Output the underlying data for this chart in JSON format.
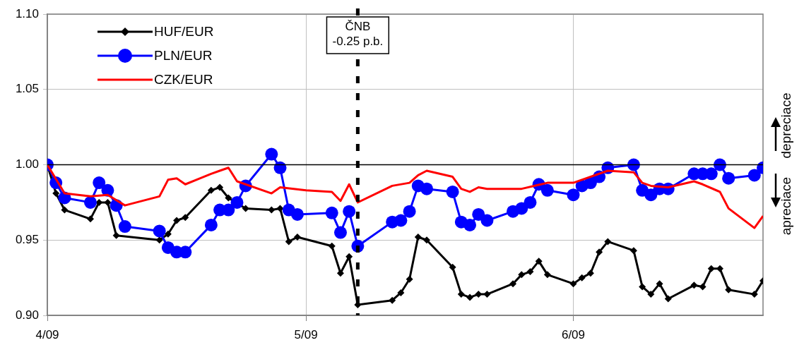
{
  "chart_data": {
    "type": "line",
    "xlim": [
      "2009-04-01",
      "2009-06-23"
    ],
    "xticks": [
      {
        "value": "2009-04-01",
        "label": "4/09"
      },
      {
        "value": "2009-05-01",
        "label": "5/09"
      },
      {
        "value": "2009-06-01",
        "label": "6/09"
      }
    ],
    "ylim": [
      0.9,
      1.1
    ],
    "yticks": [
      {
        "value": 0.9,
        "label": "0.90"
      },
      {
        "value": 0.95,
        "label": "0.95"
      },
      {
        "value": 1.0,
        "label": "1.00"
      },
      {
        "value": 1.05,
        "label": "1.05"
      },
      {
        "value": 1.1,
        "label": "1.10"
      }
    ],
    "grid": true,
    "legend": "top left",
    "series": [
      {
        "name": "HUF/EUR",
        "color": "#000000",
        "marker": "diamond",
        "x": [
          "2009-04-01",
          "2009-04-02",
          "2009-04-03",
          "2009-04-06",
          "2009-04-07",
          "2009-04-08",
          "2009-04-09",
          "2009-04-14",
          "2009-04-15",
          "2009-04-16",
          "2009-04-17",
          "2009-04-20",
          "2009-04-21",
          "2009-04-22",
          "2009-04-24",
          "2009-04-27",
          "2009-04-28",
          "2009-04-29",
          "2009-04-30",
          "2009-05-04",
          "2009-05-05",
          "2009-05-06",
          "2009-05-07",
          "2009-05-11",
          "2009-05-12",
          "2009-05-13",
          "2009-05-14",
          "2009-05-15",
          "2009-05-18",
          "2009-05-19",
          "2009-05-20",
          "2009-05-21",
          "2009-05-22",
          "2009-05-25",
          "2009-05-26",
          "2009-05-27",
          "2009-05-28",
          "2009-05-29",
          "2009-06-01",
          "2009-06-02",
          "2009-06-03",
          "2009-06-04",
          "2009-06-05",
          "2009-06-08",
          "2009-06-09",
          "2009-06-10",
          "2009-06-11",
          "2009-06-12",
          "2009-06-15",
          "2009-06-16",
          "2009-06-17",
          "2009-06-18",
          "2009-06-19",
          "2009-06-22",
          "2009-06-23"
        ],
        "values": [
          1.0,
          0.981,
          0.97,
          0.964,
          0.975,
          0.975,
          0.953,
          0.95,
          0.954,
          0.963,
          0.965,
          0.983,
          0.985,
          0.978,
          0.971,
          0.97,
          0.971,
          0.949,
          0.952,
          0.946,
          0.928,
          0.939,
          0.907,
          0.91,
          0.915,
          0.924,
          0.952,
          0.95,
          0.932,
          0.914,
          0.912,
          0.914,
          0.914,
          0.921,
          0.927,
          0.929,
          0.936,
          0.927,
          0.921,
          0.925,
          0.928,
          0.942,
          0.949,
          0.943,
          0.919,
          0.914,
          0.921,
          0.911,
          0.92,
          0.919,
          0.931,
          0.931,
          0.917,
          0.914,
          0.923
        ]
      },
      {
        "name": "PLN/EUR",
        "color": "#0000ff",
        "marker": "circle",
        "x": [
          "2009-04-01",
          "2009-04-02",
          "2009-04-03",
          "2009-04-06",
          "2009-04-07",
          "2009-04-08",
          "2009-04-09",
          "2009-04-10",
          "2009-04-14",
          "2009-04-15",
          "2009-04-16",
          "2009-04-17",
          "2009-04-20",
          "2009-04-21",
          "2009-04-22",
          "2009-04-23",
          "2009-04-24",
          "2009-04-27",
          "2009-04-28",
          "2009-04-29",
          "2009-04-30",
          "2009-05-04",
          "2009-05-05",
          "2009-05-06",
          "2009-05-07",
          "2009-05-11",
          "2009-05-12",
          "2009-05-13",
          "2009-05-14",
          "2009-05-15",
          "2009-05-18",
          "2009-05-19",
          "2009-05-20",
          "2009-05-21",
          "2009-05-22",
          "2009-05-25",
          "2009-05-26",
          "2009-05-27",
          "2009-05-28",
          "2009-05-29",
          "2009-06-01",
          "2009-06-02",
          "2009-06-03",
          "2009-06-04",
          "2009-06-05",
          "2009-06-08",
          "2009-06-09",
          "2009-06-10",
          "2009-06-11",
          "2009-06-12",
          "2009-06-15",
          "2009-06-16",
          "2009-06-17",
          "2009-06-18",
          "2009-06-19",
          "2009-06-22",
          "2009-06-23"
        ],
        "values": [
          1.0,
          0.988,
          0.978,
          0.975,
          0.988,
          0.983,
          0.973,
          0.959,
          0.956,
          0.945,
          0.942,
          0.942,
          0.96,
          0.97,
          0.97,
          0.975,
          0.986,
          1.007,
          0.998,
          0.97,
          0.967,
          0.968,
          0.955,
          0.969,
          0.946,
          0.962,
          0.963,
          0.969,
          0.986,
          0.984,
          0.982,
          0.962,
          0.96,
          0.967,
          0.963,
          0.969,
          0.971,
          0.975,
          0.987,
          0.983,
          0.98,
          0.986,
          0.988,
          0.992,
          0.998,
          1.0,
          0.983,
          0.98,
          0.984,
          0.984,
          0.994,
          0.994,
          0.994,
          1.0,
          0.991,
          0.993,
          0.998
        ]
      },
      {
        "name": "CZK/EUR",
        "color": "#ff0000",
        "marker": "none",
        "x": [
          "2009-04-01",
          "2009-04-03",
          "2009-04-06",
          "2009-04-08",
          "2009-04-10",
          "2009-04-14",
          "2009-04-15",
          "2009-04-16",
          "2009-04-17",
          "2009-04-20",
          "2009-04-21",
          "2009-04-22",
          "2009-04-23",
          "2009-04-27",
          "2009-04-28",
          "2009-05-01",
          "2009-05-04",
          "2009-05-05",
          "2009-05-06",
          "2009-05-07",
          "2009-05-11",
          "2009-05-13",
          "2009-05-14",
          "2009-05-15",
          "2009-05-18",
          "2009-05-19",
          "2009-05-20",
          "2009-05-21",
          "2009-05-22",
          "2009-05-26",
          "2009-05-29",
          "2009-06-01",
          "2009-06-05",
          "2009-06-08",
          "2009-06-09",
          "2009-06-10",
          "2009-06-12",
          "2009-06-15",
          "2009-06-16",
          "2009-06-18",
          "2009-06-19",
          "2009-06-22",
          "2009-06-23"
        ],
        "values": [
          1.0,
          0.981,
          0.979,
          0.98,
          0.973,
          0.979,
          0.99,
          0.991,
          0.987,
          0.994,
          0.996,
          0.998,
          0.989,
          0.981,
          0.985,
          0.983,
          0.982,
          0.976,
          0.987,
          0.975,
          0.986,
          0.988,
          0.993,
          0.996,
          0.992,
          0.984,
          0.982,
          0.985,
          0.984,
          0.984,
          0.988,
          0.988,
          0.996,
          0.995,
          0.988,
          0.986,
          0.985,
          0.989,
          0.987,
          0.982,
          0.971,
          0.958,
          0.966
        ]
      }
    ],
    "ref_lines": [
      {
        "axis": "y",
        "value": 1.0,
        "color": "#000000",
        "line_style": "solid"
      },
      {
        "axis": "x",
        "value": "2009-05-07",
        "label": "ČNB\n-0.25 p.b.",
        "color": "#000000",
        "line_style": "dashed"
      }
    ],
    "annotations": [
      "depreciace",
      "apreciace"
    ]
  }
}
